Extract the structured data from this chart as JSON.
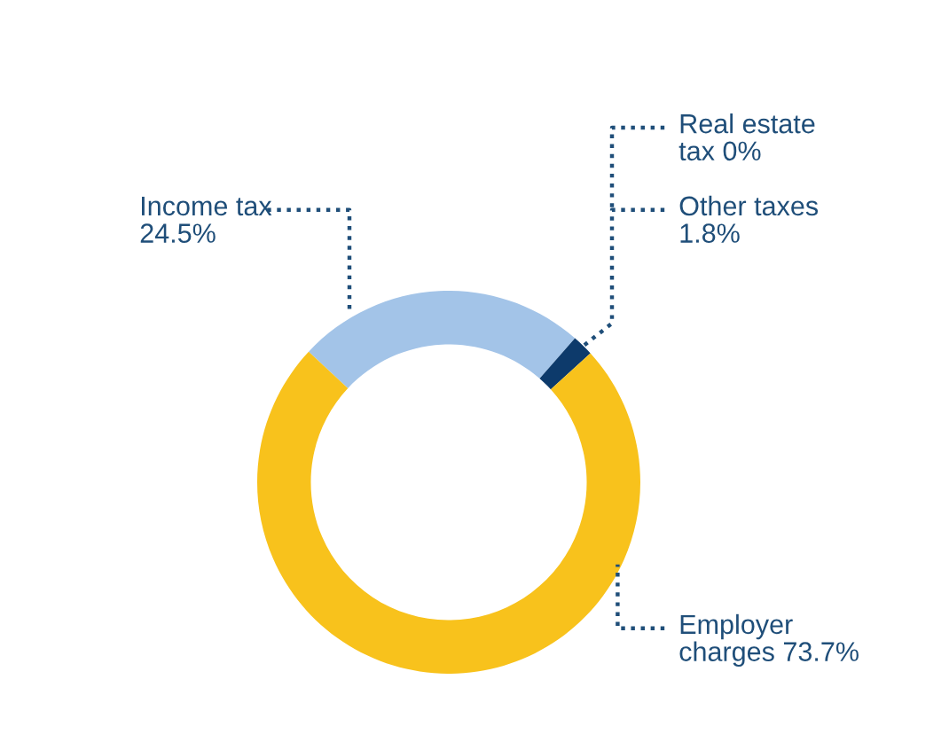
{
  "chart_data": {
    "type": "donut",
    "categories": [
      "Income tax",
      "Real estate\ntax",
      "Other taxes",
      "Employer\ncharges"
    ],
    "values": [
      24.5,
      0,
      1.8,
      73.7
    ],
    "colors": [
      "#a3c4e8",
      "#0d3a6b",
      "#0d3a6b",
      "#f8c21c"
    ],
    "value_labels": [
      "24.5%",
      "0%",
      "1.8%",
      "73.7%"
    ],
    "legend": false
  }
}
